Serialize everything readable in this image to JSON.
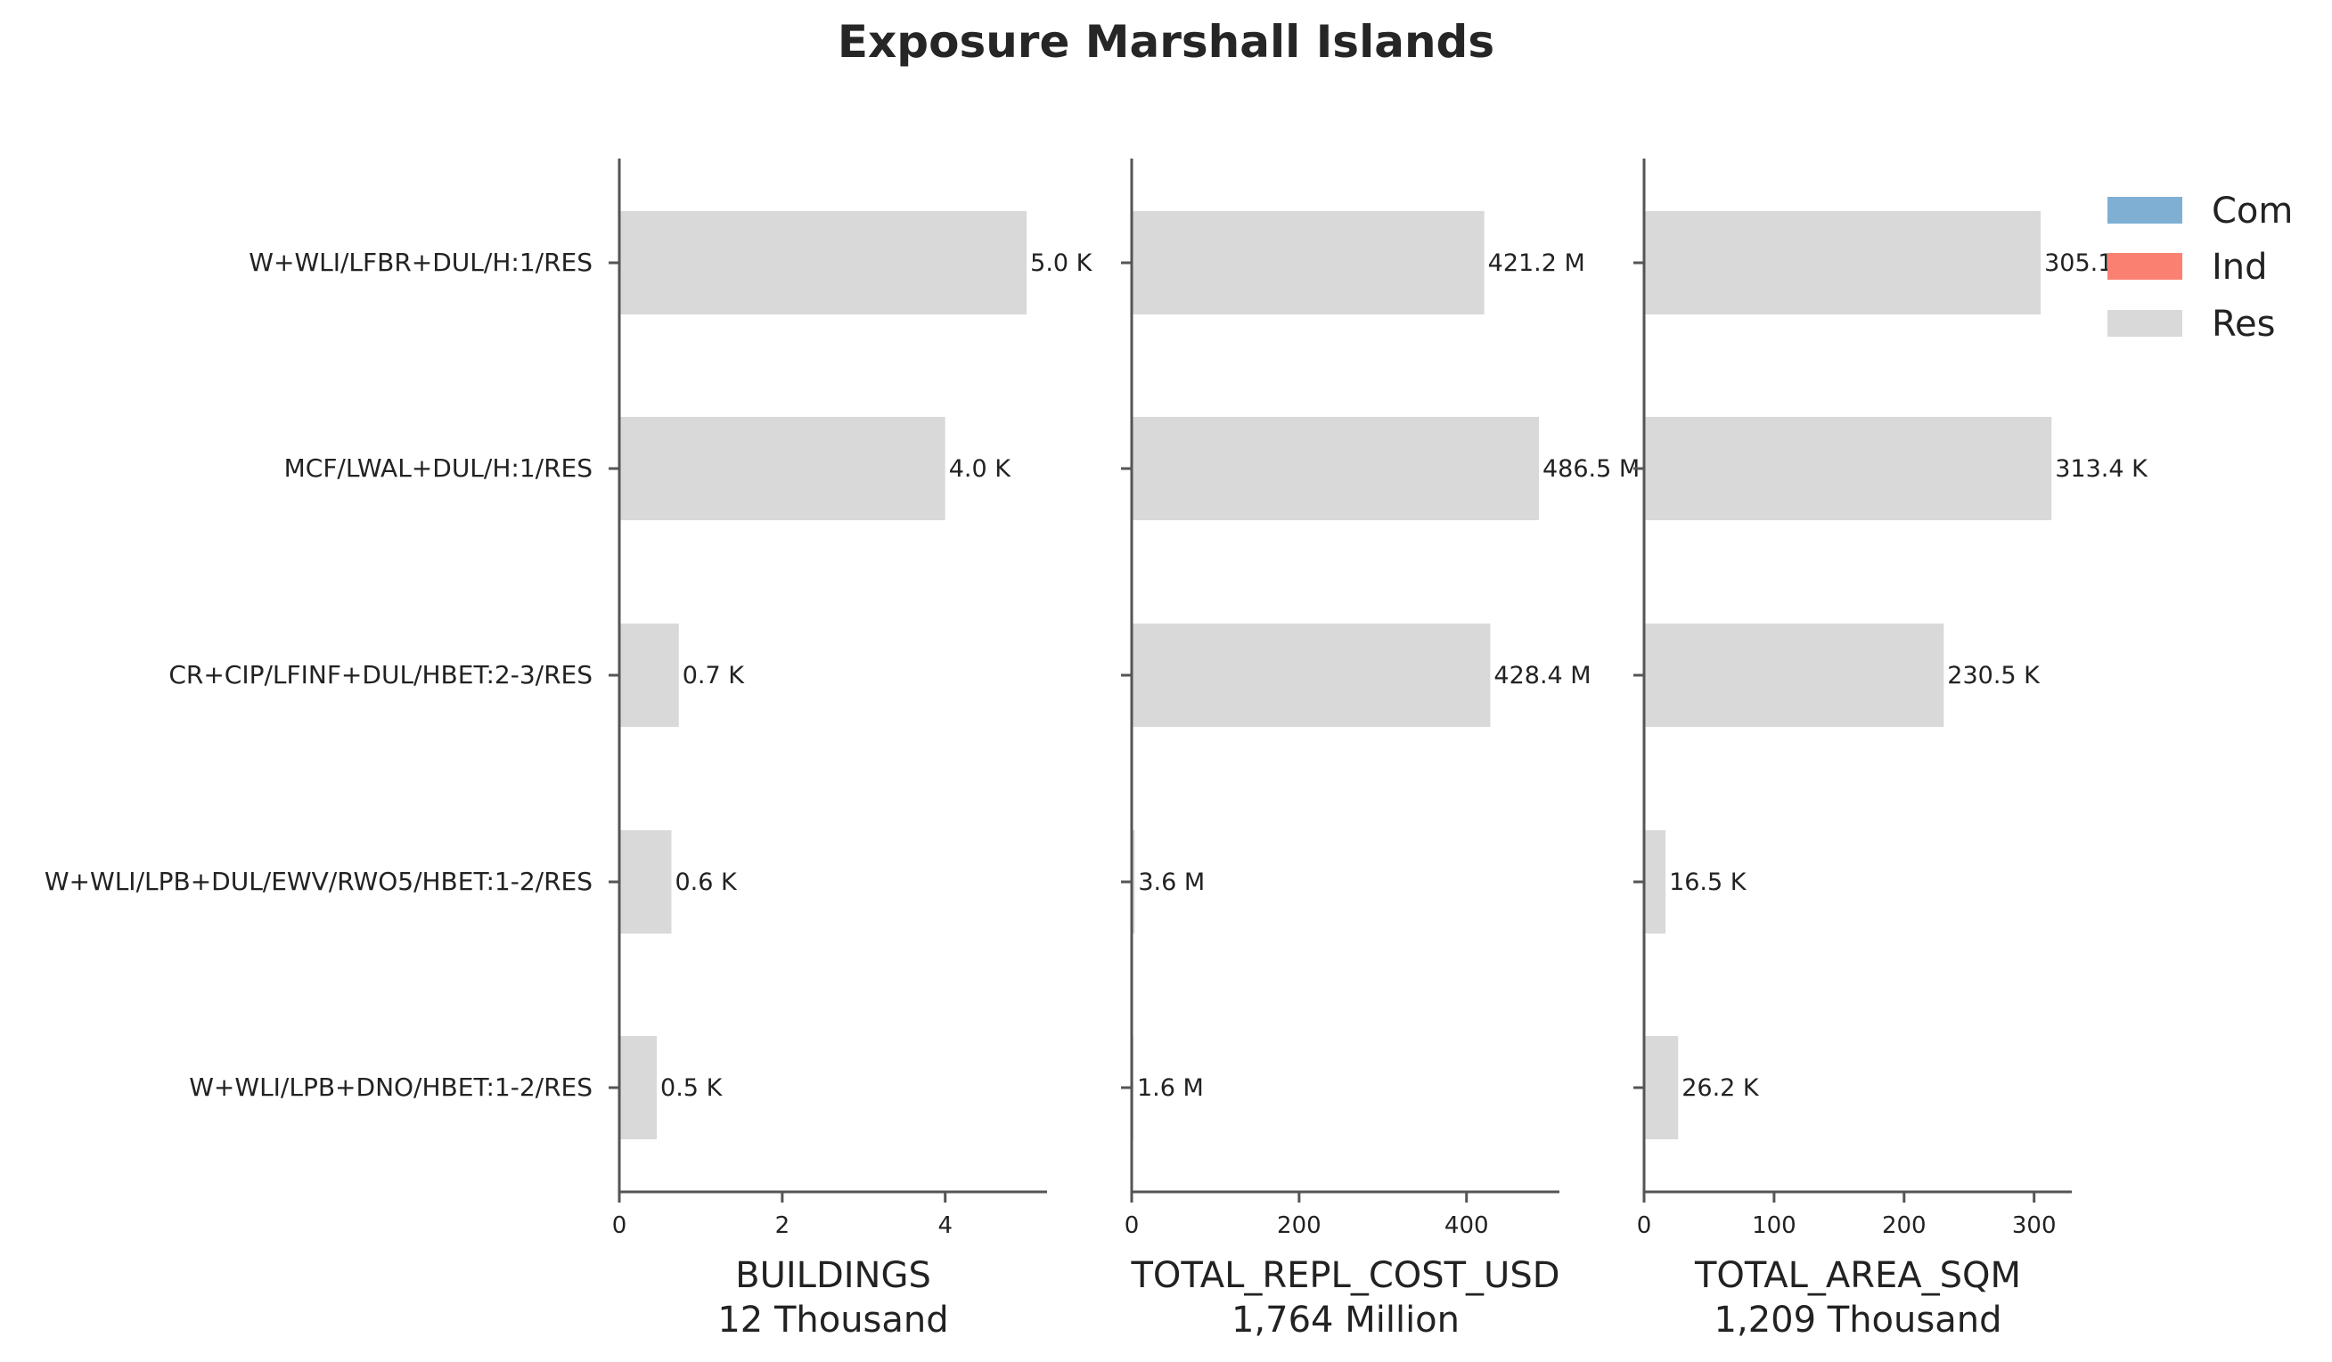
{
  "chart_data": {
    "type": "bar",
    "orientation": "horizontal",
    "title": "Exposure Marshall Islands",
    "categories": [
      "W+WLI/LFBR+DUL/H:1/RES",
      "MCF/LWAL+DUL/H:1/RES",
      "CR+CIP/LFINF+DUL/HBET:2-3/RES",
      "W+WLI/LPB+DUL/EWV/RWO5/HBET:1-2/RES",
      "W+WLI/LPB+DNO/HBET:1-2/RES"
    ],
    "legend": {
      "placement": "top-right",
      "entries": [
        {
          "name": "Com",
          "color": "#7fb0d4"
        },
        {
          "name": "Ind",
          "color": "#fa8072"
        },
        {
          "name": "Res",
          "color": "#d9d9d9"
        }
      ]
    },
    "panels": [
      {
        "xlabel": "BUILDINGS",
        "xsublabel": "12 Thousand",
        "xlim": [
          0,
          5.25
        ],
        "ticks": [
          0,
          2,
          4
        ],
        "tick_labels": [
          "0",
          "2",
          "4"
        ],
        "series": [
          {
            "name": "Res",
            "values": [
              5.0,
              4.0,
              0.73,
              0.64,
              0.46
            ]
          }
        ],
        "data_labels": [
          "5.0 K",
          "4.0 K",
          "0.7 K",
          "0.6 K",
          "0.5 K"
        ]
      },
      {
        "xlabel": "TOTAL_REPL_COST_USD",
        "xsublabel": "1,764 Million",
        "xlim": [
          0,
          511
        ],
        "ticks": [
          0,
          200,
          400
        ],
        "tick_labels": [
          "0",
          "200",
          "400"
        ],
        "series": [
          {
            "name": "Res",
            "values": [
              421.2,
              486.5,
              428.4,
              3.6,
              1.6
            ]
          }
        ],
        "data_labels": [
          "421.2 M",
          "486.5 M",
          "428.4 M",
          "3.6 M",
          "1.6 M"
        ]
      },
      {
        "xlabel": "TOTAL_AREA_SQM",
        "xsublabel": "1,209 Thousand",
        "xlim": [
          0,
          329
        ],
        "ticks": [
          0,
          100,
          200,
          300
        ],
        "tick_labels": [
          "0",
          "100",
          "200",
          "300"
        ],
        "series": [
          {
            "name": "Res",
            "values": [
              305.1,
              313.4,
              230.5,
              16.5,
              26.2
            ]
          }
        ],
        "data_labels": [
          "305.1 K",
          "313.4 K",
          "230.5 K",
          "16.5 K",
          "26.2 K"
        ]
      }
    ],
    "grid": false
  },
  "colors": {
    "bar": "#d9d9d9",
    "axis": "#555555",
    "text": "#222222"
  }
}
